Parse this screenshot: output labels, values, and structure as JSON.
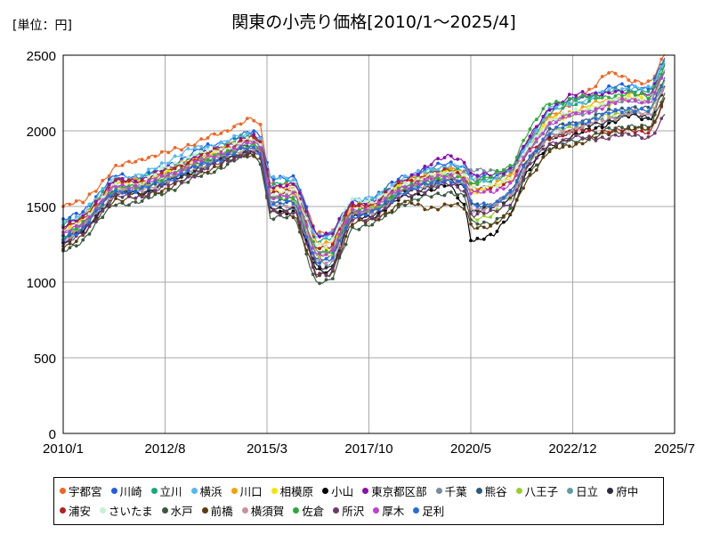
{
  "chart_data": {
    "type": "line",
    "title": "関東の小売り価格[2010/1～2025/4]",
    "unit_label": "[単位：円]",
    "xlabel": "",
    "ylabel": "",
    "ylim": [
      0,
      2500
    ],
    "y_ticks": [
      "0",
      "500",
      "1000",
      "1500",
      "2000",
      "2500"
    ],
    "y_tick_values": [
      0,
      500,
      1000,
      1500,
      2000,
      2500
    ],
    "x_ticks": [
      "2010/1",
      "2012/8",
      "2015/3",
      "2017/10",
      "2020/5",
      "2022/12",
      "2025/7"
    ],
    "x_tick_values": [
      2010.0,
      2012.583,
      2015.167,
      2017.75,
      2020.333,
      2022.917,
      2025.5
    ],
    "xlim": [
      2010.0,
      2025.5
    ],
    "grid": true,
    "legend_position": "bottom",
    "anchors_x": [
      2010.0,
      2010.5,
      2011.3,
      2012.0,
      2012.6,
      2013.3,
      2014.0,
      2014.5,
      2014.8,
      2015.0,
      2015.25,
      2015.9,
      2016.4,
      2016.8,
      2017.3,
      2017.9,
      2018.6,
      2019.2,
      2019.8,
      2020.2,
      2020.35,
      2020.9,
      2021.4,
      2021.7,
      2022.3,
      2022.9,
      2023.3,
      2023.8,
      2024.4,
      2024.9,
      2025.25
    ],
    "series": [
      {
        "name": "宇都宮",
        "color": "#f26522",
        "values": [
          1500,
          1530,
          1750,
          1820,
          1850,
          1920,
          1980,
          2060,
          2080,
          2020,
          1650,
          1650,
          1330,
          1330,
          1480,
          1520,
          1650,
          1720,
          1760,
          1700,
          1660,
          1680,
          1730,
          1900,
          2100,
          2180,
          2250,
          2400,
          2320,
          2330,
          2500
        ]
      },
      {
        "name": "川崎",
        "color": "#1f5fe0",
        "values": [
          1400,
          1470,
          1700,
          1700,
          1760,
          1860,
          1920,
          1970,
          1990,
          1960,
          1700,
          1680,
          1320,
          1320,
          1530,
          1560,
          1700,
          1740,
          1790,
          1760,
          1690,
          1700,
          1760,
          1880,
          2150,
          2200,
          2230,
          2280,
          2300,
          2280,
          2480
        ]
      },
      {
        "name": "立川",
        "color": "#16a97a",
        "values": [
          1380,
          1440,
          1680,
          1690,
          1750,
          1830,
          1900,
          1950,
          1970,
          1940,
          1650,
          1650,
          1280,
          1280,
          1520,
          1540,
          1680,
          1720,
          1760,
          1730,
          1660,
          1680,
          1740,
          1870,
          2120,
          2170,
          2200,
          2250,
          2280,
          2260,
          2450
        ]
      },
      {
        "name": "横浜",
        "color": "#55b8f0",
        "values": [
          1390,
          1450,
          1690,
          1700,
          1800,
          1880,
          1920,
          1960,
          1980,
          1950,
          1690,
          1670,
          1300,
          1300,
          1550,
          1550,
          1690,
          1730,
          1780,
          1750,
          1680,
          1690,
          1750,
          1880,
          2140,
          2190,
          2210,
          2260,
          2290,
          2270,
          2460
        ]
      },
      {
        "name": "川口",
        "color": "#f5a100",
        "values": [
          1350,
          1420,
          1660,
          1670,
          1730,
          1810,
          1880,
          1930,
          1950,
          1920,
          1620,
          1620,
          1250,
          1250,
          1500,
          1520,
          1660,
          1700,
          1740,
          1710,
          1620,
          1640,
          1700,
          1850,
          2080,
          2130,
          2160,
          2200,
          2240,
          2220,
          2420
        ]
      },
      {
        "name": "相模原",
        "color": "#f5e400",
        "values": [
          1330,
          1410,
          1650,
          1660,
          1720,
          1800,
          1870,
          1920,
          1940,
          1910,
          1600,
          1600,
          1220,
          1220,
          1490,
          1510,
          1650,
          1690,
          1730,
          1690,
          1600,
          1620,
          1690,
          1840,
          2060,
          2110,
          2140,
          2180,
          2220,
          2200,
          2400
        ]
      },
      {
        "name": "小山",
        "color": "#000000",
        "values": [
          1250,
          1330,
          1580,
          1590,
          1650,
          1740,
          1810,
          1860,
          1870,
          1840,
          1480,
          1460,
          1080,
          1080,
          1420,
          1440,
          1560,
          1600,
          1640,
          1500,
          1270,
          1300,
          1480,
          1700,
          1900,
          1960,
          2000,
          2050,
          2100,
          2080,
          2300
        ]
      },
      {
        "name": "東京都区部",
        "color": "#8a0ea8",
        "values": [
          1360,
          1430,
          1670,
          1680,
          1740,
          1820,
          1890,
          1940,
          1960,
          1930,
          1640,
          1640,
          1320,
          1320,
          1510,
          1530,
          1670,
          1760,
          1840,
          1800,
          1700,
          1710,
          1760,
          1900,
          2150,
          2230,
          2250,
          2250,
          2250,
          2250,
          2420
        ]
      },
      {
        "name": "千葉",
        "color": "#7a8aa0",
        "values": [
          1310,
          1390,
          1630,
          1640,
          1700,
          1780,
          1850,
          1900,
          1920,
          1890,
          1560,
          1560,
          1200,
          1200,
          1470,
          1490,
          1630,
          1670,
          1710,
          1740,
          1730,
          1740,
          1740,
          1830,
          2050,
          2100,
          2130,
          2170,
          2210,
          2190,
          2390
        ]
      },
      {
        "name": "熊谷",
        "color": "#2a5a7a",
        "values": [
          1290,
          1370,
          1610,
          1620,
          1680,
          1760,
          1830,
          1880,
          1900,
          1870,
          1530,
          1530,
          1150,
          1150,
          1450,
          1470,
          1610,
          1650,
          1690,
          1650,
          1500,
          1520,
          1600,
          1780,
          2000,
          2050,
          2080,
          2120,
          2160,
          2140,
          2350
        ]
      },
      {
        "name": "八王子",
        "color": "#9acd32",
        "values": [
          1300,
          1380,
          1620,
          1630,
          1690,
          1770,
          1840,
          1890,
          1910,
          1880,
          1550,
          1550,
          1170,
          1170,
          1460,
          1480,
          1620,
          1660,
          1700,
          1660,
          1420,
          1450,
          1550,
          1760,
          1980,
          2030,
          2060,
          2100,
          2140,
          2120,
          2330
        ]
      },
      {
        "name": "日立",
        "color": "#5f9ea0",
        "values": [
          1270,
          1350,
          1590,
          1600,
          1660,
          1740,
          1810,
          1860,
          1880,
          1850,
          1500,
          1500,
          1120,
          1120,
          1440,
          1460,
          1600,
          1640,
          1680,
          1640,
          1480,
          1500,
          1580,
          1760,
          1960,
          2010,
          2040,
          2080,
          2120,
          2100,
          2310
        ]
      },
      {
        "name": "府中",
        "color": "#2b2b3b",
        "values": [
          1260,
          1340,
          1580,
          1590,
          1650,
          1730,
          1800,
          1850,
          1870,
          1840,
          1490,
          1490,
          1100,
          1100,
          1430,
          1450,
          1590,
          1630,
          1670,
          1630,
          1470,
          1490,
          1570,
          1750,
          1950,
          2000,
          2030,
          2070,
          2110,
          2090,
          2300
        ]
      },
      {
        "name": "浦安",
        "color": "#b22222",
        "values": [
          1340,
          1420,
          1660,
          1670,
          1730,
          1810,
          1880,
          1930,
          1950,
          1920,
          1600,
          1600,
          1240,
          1240,
          1500,
          1520,
          1660,
          1700,
          1740,
          1700,
          1600,
          1620,
          1680,
          1830,
          1960,
          1990,
          2000,
          2000,
          2000,
          2000,
          2200
        ]
      },
      {
        "name": "さいたま",
        "color": "#c8f0d8",
        "values": [
          1320,
          1400,
          1640,
          1650,
          1760,
          1840,
          1880,
          1920,
          1940,
          1900,
          1580,
          1600,
          1250,
          1250,
          1560,
          1530,
          1650,
          1690,
          1730,
          1700,
          1620,
          1640,
          1700,
          1850,
          2070,
          2120,
          2150,
          2190,
          2230,
          2210,
          2410
        ]
      },
      {
        "name": "水戸",
        "color": "#3a5a40",
        "values": [
          1200,
          1280,
          1520,
          1530,
          1600,
          1680,
          1760,
          1820,
          1840,
          1800,
          1430,
          1420,
          1000,
          1000,
          1360,
          1380,
          1520,
          1560,
          1600,
          1560,
          1380,
          1400,
          1480,
          1680,
          1880,
          1930,
          1960,
          2000,
          2040,
          2020,
          2250
        ]
      },
      {
        "name": "前橋",
        "color": "#5c3d0e",
        "values": [
          1230,
          1310,
          1550,
          1560,
          1620,
          1700,
          1780,
          1830,
          1850,
          1820,
          1460,
          1440,
          1040,
          1040,
          1400,
          1400,
          1540,
          1480,
          1520,
          1480,
          1360,
          1380,
          1460,
          1660,
          1860,
          1910,
          1940,
          1980,
          2020,
          2000,
          2220
        ]
      },
      {
        "name": "横須賀",
        "color": "#c9909a",
        "values": [
          1280,
          1360,
          1600,
          1610,
          1670,
          1750,
          1820,
          1870,
          1890,
          1860,
          1510,
          1510,
          1130,
          1130,
          1440,
          1460,
          1600,
          1640,
          1680,
          1640,
          1480,
          1500,
          1580,
          1760,
          1960,
          2010,
          2040,
          2080,
          2120,
          2100,
          2310
        ]
      },
      {
        "name": "佐倉",
        "color": "#2eaa3c",
        "values": [
          1300,
          1380,
          1620,
          1630,
          1690,
          1770,
          1840,
          1890,
          1910,
          1880,
          1560,
          1560,
          1200,
          1200,
          1460,
          1480,
          1620,
          1660,
          1700,
          1680,
          1650,
          1700,
          1780,
          1960,
          2180,
          2210,
          2220,
          2230,
          2240,
          2230,
          2440
        ]
      },
      {
        "name": "所沢",
        "color": "#6b3b6b",
        "values": [
          1240,
          1320,
          1560,
          1570,
          1630,
          1710,
          1790,
          1840,
          1860,
          1830,
          1470,
          1460,
          1060,
          1060,
          1410,
          1430,
          1570,
          1610,
          1650,
          1610,
          1440,
          1460,
          1540,
          1720,
          1920,
          1950,
          1950,
          1960,
          1970,
          1960,
          2100
        ]
      },
      {
        "name": "厚木",
        "color": "#c040d0",
        "values": [
          1310,
          1390,
          1630,
          1640,
          1700,
          1780,
          1850,
          1900,
          1920,
          1890,
          1570,
          1570,
          1190,
          1190,
          1470,
          1490,
          1630,
          1670,
          1710,
          1670,
          1580,
          1600,
          1660,
          1820,
          2050,
          2100,
          2130,
          2170,
          2210,
          2190,
          2390
        ]
      },
      {
        "name": "足利",
        "color": "#2a6ae0",
        "values": [
          1280,
          1360,
          1600,
          1610,
          1670,
          1750,
          1820,
          1870,
          1890,
          1860,
          1520,
          1520,
          1140,
          1140,
          1440,
          1460,
          1600,
          1640,
          1680,
          1640,
          1500,
          1520,
          1600,
          1780,
          1990,
          2040,
          2070,
          2110,
          2150,
          2130,
          2340
        ]
      }
    ]
  }
}
